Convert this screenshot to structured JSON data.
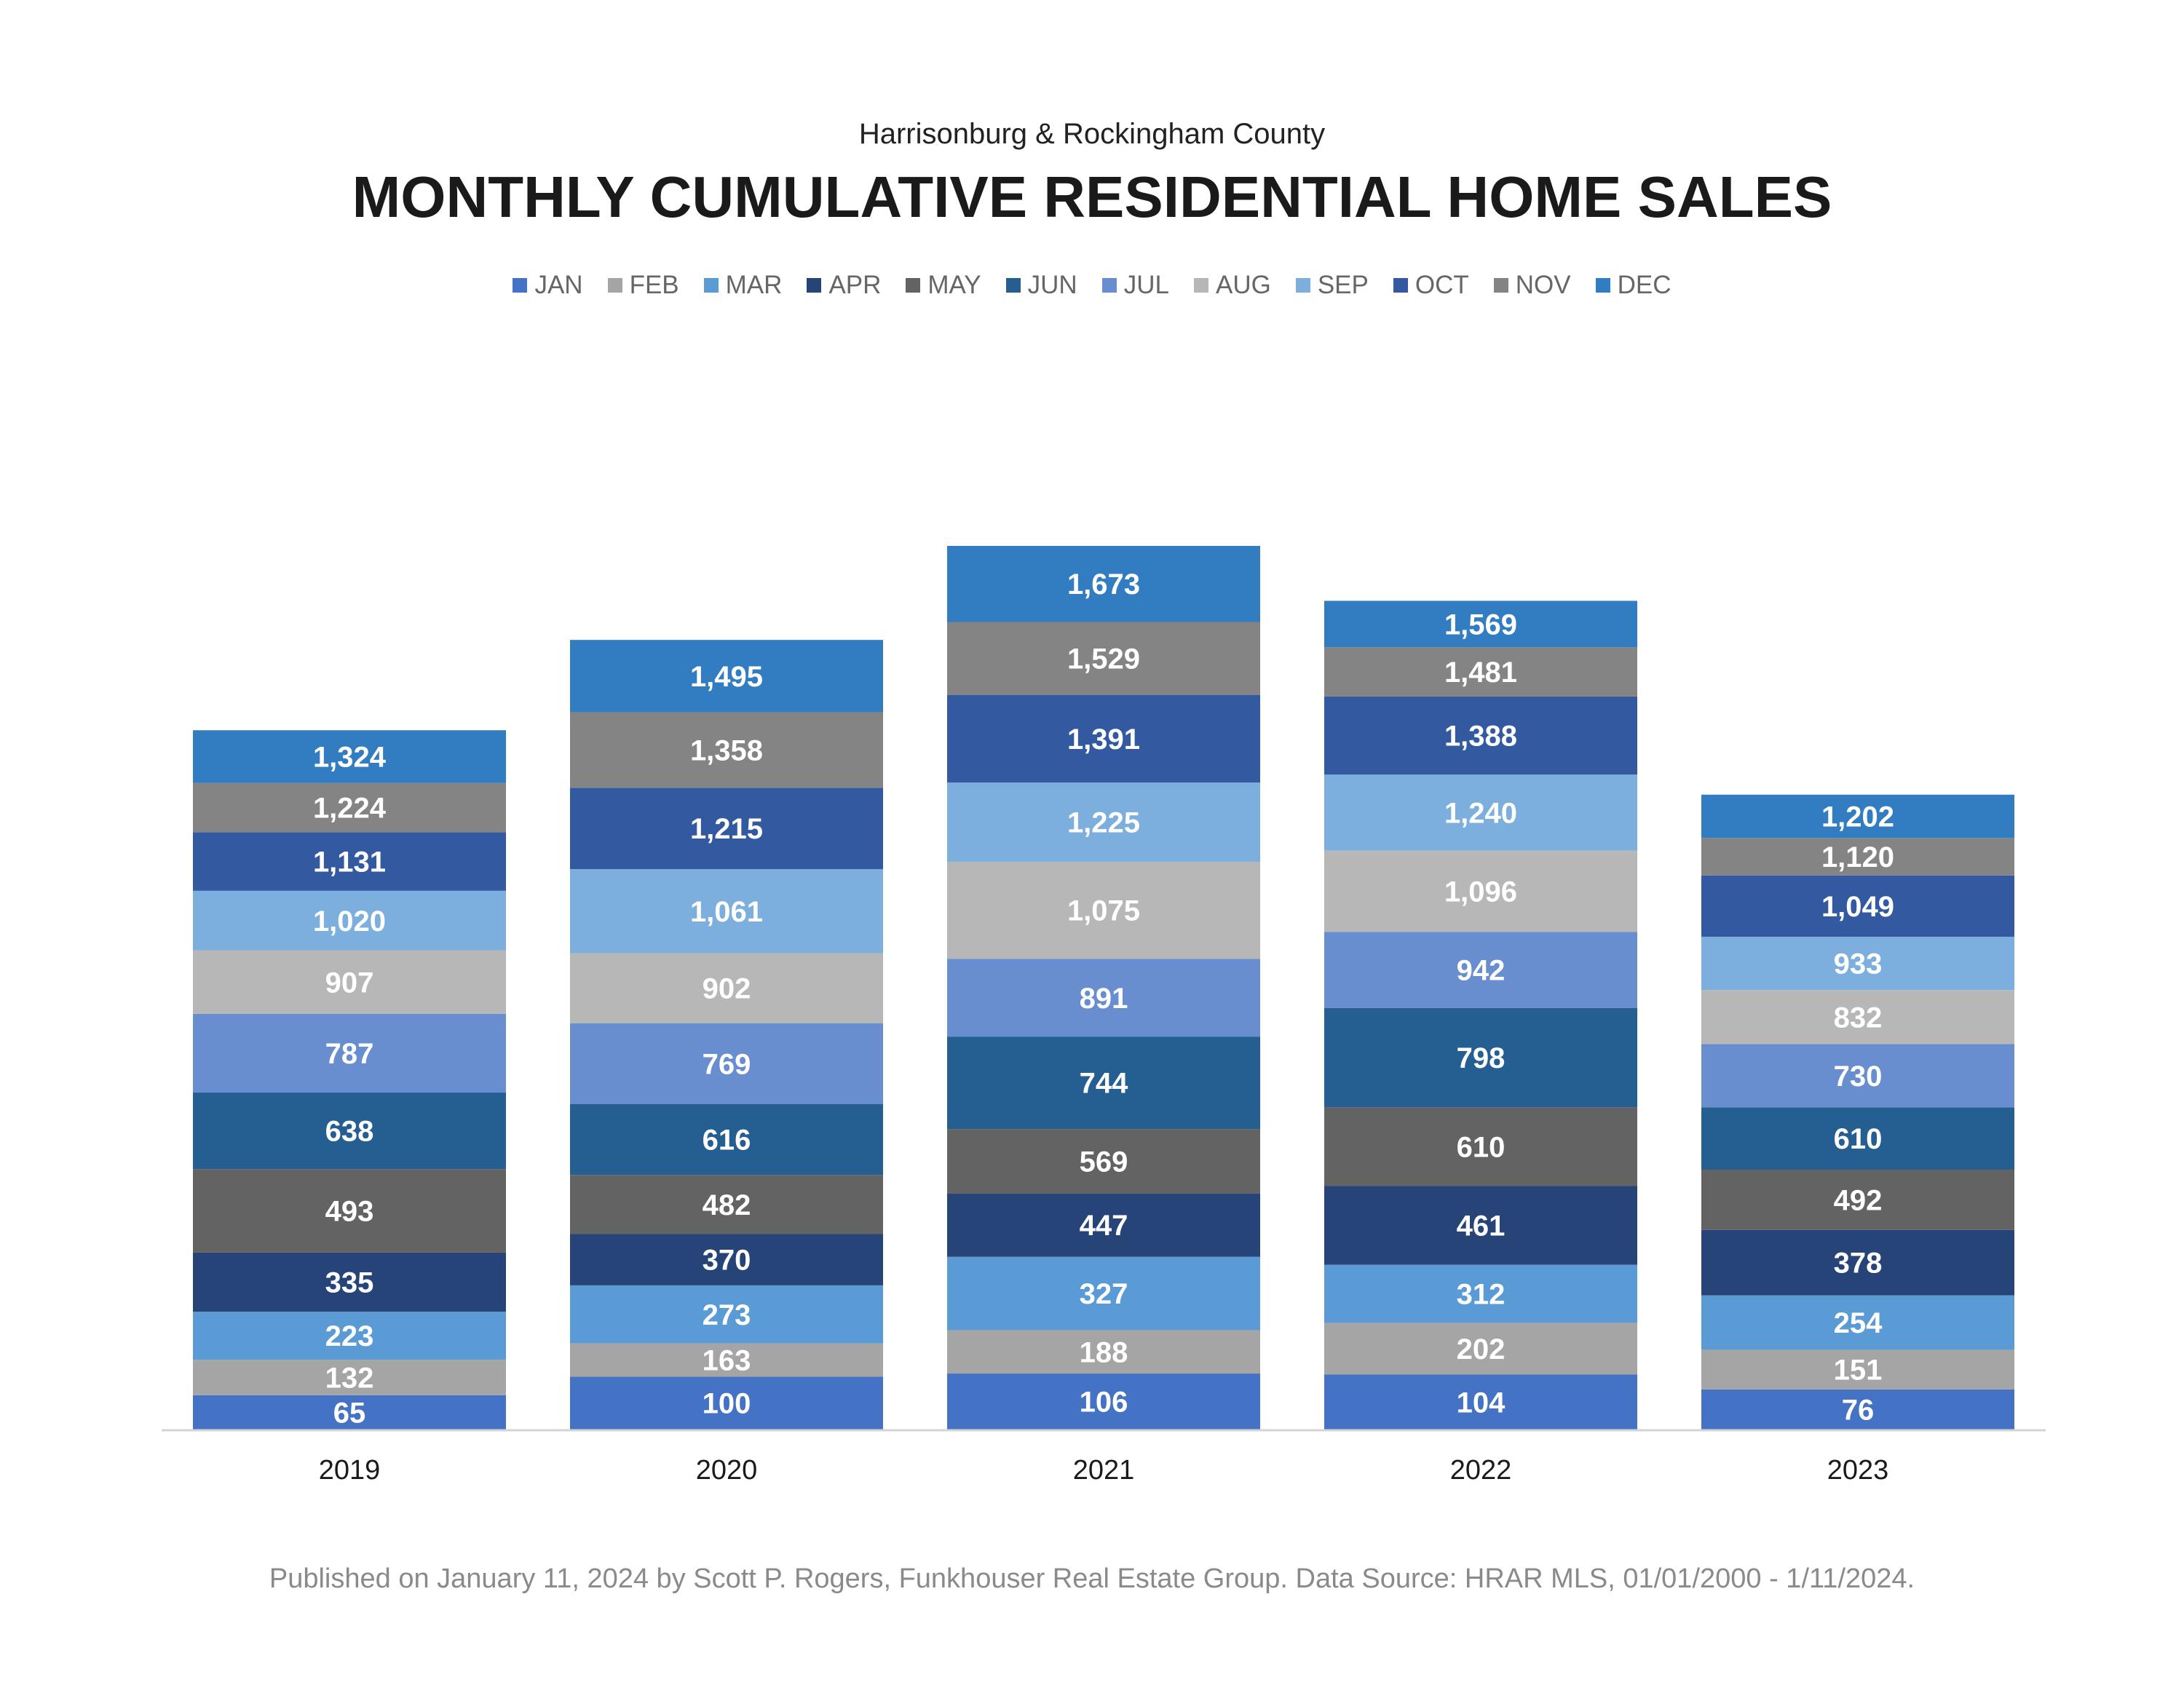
{
  "header": {
    "subtitle": "Harrisonburg & Rockingham County",
    "title": "MONTHLY CUMULATIVE RESIDENTIAL HOME SALES"
  },
  "legend": [
    {
      "label": "JAN",
      "color": "#4472C4"
    },
    {
      "label": "FEB",
      "color": "#A5A5A5"
    },
    {
      "label": "MAR",
      "color": "#5B9BD5"
    },
    {
      "label": "APR",
      "color": "#264478"
    },
    {
      "label": "MAY",
      "color": "#636363"
    },
    {
      "label": "JUN",
      "color": "#255E91"
    },
    {
      "label": "JUL",
      "color": "#698ED0"
    },
    {
      "label": "AUG",
      "color": "#B7B7B7"
    },
    {
      "label": "SEP",
      "color": "#7CAFDD"
    },
    {
      "label": "OCT",
      "color": "#335AA1"
    },
    {
      "label": "NOV",
      "color": "#848484"
    },
    {
      "label": "DEC",
      "color": "#327DC2"
    }
  ],
  "chart_data": {
    "type": "bar",
    "stacking": "stacked",
    "title": "MONTHLY CUMULATIVE RESIDENTIAL HOME SALES",
    "categories": [
      "2019",
      "2020",
      "2021",
      "2022",
      "2023"
    ],
    "series": [
      {
        "name": "JAN",
        "values": [
          65,
          100,
          106,
          104,
          76
        ],
        "labels": [
          "65",
          "100",
          "106",
          "104",
          "76"
        ]
      },
      {
        "name": "FEB",
        "values": [
          132,
          163,
          188,
          202,
          151
        ],
        "labels": [
          "132",
          "163",
          "188",
          "202",
          "151"
        ]
      },
      {
        "name": "MAR",
        "values": [
          223,
          273,
          327,
          312,
          254
        ],
        "labels": [
          "223",
          "273",
          "327",
          "312",
          "254"
        ]
      },
      {
        "name": "APR",
        "values": [
          335,
          370,
          447,
          461,
          378
        ],
        "labels": [
          "335",
          "370",
          "447",
          "461",
          "378"
        ]
      },
      {
        "name": "MAY",
        "values": [
          493,
          482,
          569,
          610,
          492
        ],
        "labels": [
          "493",
          "482",
          "569",
          "610",
          "492"
        ]
      },
      {
        "name": "JUN",
        "values": [
          638,
          616,
          744,
          798,
          610
        ],
        "labels": [
          "638",
          "616",
          "744",
          "798",
          "610"
        ]
      },
      {
        "name": "JUL",
        "values": [
          787,
          769,
          891,
          942,
          730
        ],
        "labels": [
          "787",
          "769",
          "891",
          "942",
          "730"
        ]
      },
      {
        "name": "AUG",
        "values": [
          907,
          902,
          1075,
          1096,
          832
        ],
        "labels": [
          "907",
          "902",
          "1,075",
          "1,096",
          "832"
        ]
      },
      {
        "name": "SEP",
        "values": [
          1020,
          1061,
          1225,
          1240,
          933
        ],
        "labels": [
          "1,020",
          "1,061",
          "1,225",
          "1,240",
          "933"
        ]
      },
      {
        "name": "OCT",
        "values": [
          1131,
          1215,
          1391,
          1388,
          1049
        ],
        "labels": [
          "1,131",
          "1,215",
          "1,391",
          "1,388",
          "1,049"
        ]
      },
      {
        "name": "NOV",
        "values": [
          1224,
          1358,
          1529,
          1481,
          1120
        ],
        "labels": [
          "1,224",
          "1,358",
          "1,529",
          "1,481",
          "1,120"
        ]
      },
      {
        "name": "DEC",
        "values": [
          1324,
          1495,
          1673,
          1569,
          1202
        ],
        "labels": [
          "1,324",
          "1,495",
          "1,673",
          "1,569",
          "1,202"
        ]
      }
    ],
    "legend_position": "top",
    "grid": false
  },
  "footer": {
    "text": "Published on January 11, 2024 by Scott P. Rogers, Funkhouser Real Estate Group. Data Source: HRAR MLS, 01/01/2000 - 1/11/2024."
  }
}
